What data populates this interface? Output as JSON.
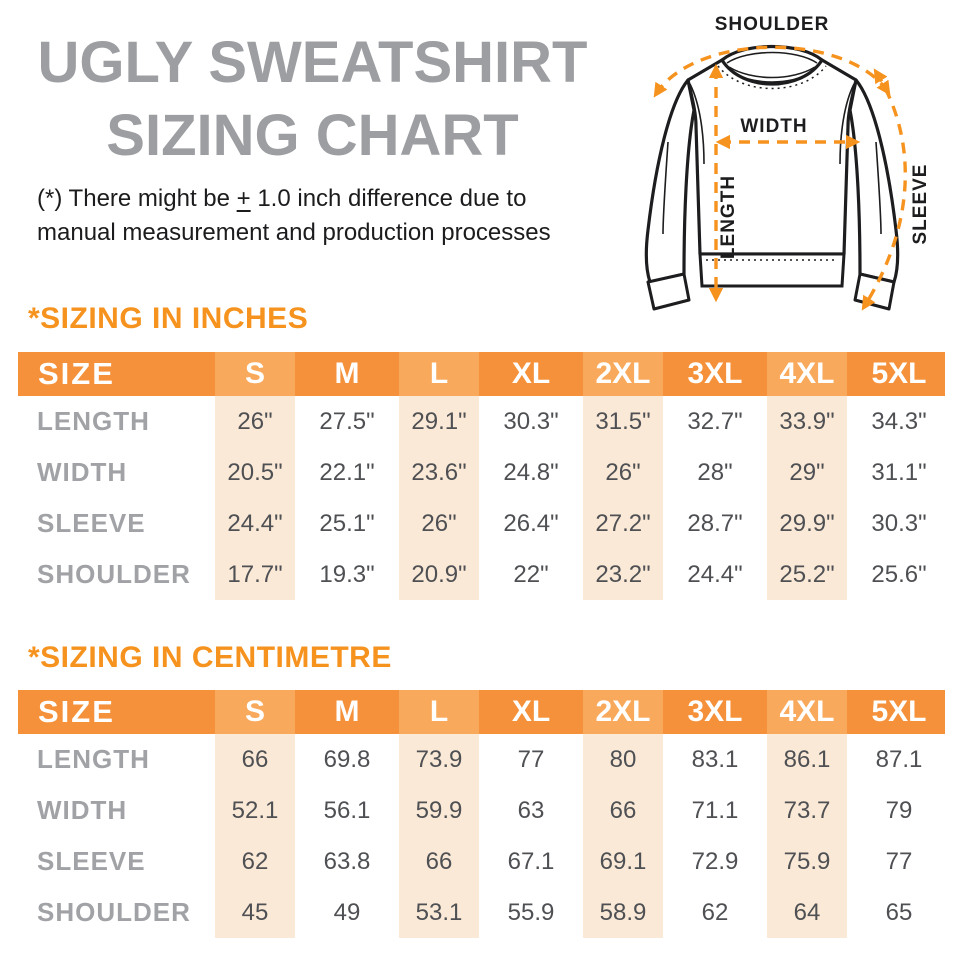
{
  "page": {
    "title_line1": "UGLY SWEATSHIRT",
    "title_line2": "SIZING CHART",
    "note_prefix": "(*) There might be ",
    "note_pm": "+",
    "note_suffix": " 1.0 inch difference due to",
    "note_line2": "manual measurement and production processes"
  },
  "diagram": {
    "labels": {
      "shoulder": "SHOULDER",
      "width": "WIDTH",
      "length": "LENGTH",
      "sleeve": "SLEEVE"
    }
  },
  "colors": {
    "accent_orange": "#F6921E",
    "header_orange": "#F5913A",
    "header_orange_light": "#F8A95C",
    "stripe_peach": "#FBE9D7",
    "title_gray": "#9C9EA1",
    "label_gray": "#A0A2A5",
    "value_gray": "#4E5053",
    "ink": "#1C1C1E"
  },
  "tables": [
    {
      "id": "inches",
      "section_title": "*SIZING IN INCHES",
      "header": [
        "SIZE",
        "S",
        "M",
        "L",
        "XL",
        "2XL",
        "3XL",
        "4XL",
        "5XL"
      ],
      "rows": [
        {
          "label": "LENGTH",
          "values": [
            "26\"",
            "27.5\"",
            "29.1\"",
            "30.3\"",
            "31.5\"",
            "32.7\"",
            "33.9\"",
            "34.3\""
          ]
        },
        {
          "label": "WIDTH",
          "values": [
            "20.5\"",
            "22.1\"",
            "23.6\"",
            "24.8\"",
            "26\"",
            "28\"",
            "29\"",
            "31.1\""
          ]
        },
        {
          "label": "SLEEVE",
          "values": [
            "24.4\"",
            "25.1\"",
            "26\"",
            "26.4\"",
            "27.2\"",
            "28.7\"",
            "29.9\"",
            "30.3\""
          ]
        },
        {
          "label": "SHOULDER",
          "values": [
            "17.7\"",
            "19.3\"",
            "20.9\"",
            "22\"",
            "23.2\"",
            "24.4\"",
            "25.2\"",
            "25.6\""
          ]
        }
      ]
    },
    {
      "id": "cm",
      "section_title": "*SIZING IN CENTIMETRE",
      "header": [
        "SIZE",
        "S",
        "M",
        "L",
        "XL",
        "2XL",
        "3XL",
        "4XL",
        "5XL"
      ],
      "rows": [
        {
          "label": "LENGTH",
          "values": [
            "66",
            "69.8",
            "73.9",
            "77",
            "80",
            "83.1",
            "86.1",
            "87.1"
          ]
        },
        {
          "label": "WIDTH",
          "values": [
            "52.1",
            "56.1",
            "59.9",
            "63",
            "66",
            "71.1",
            "73.7",
            "79"
          ]
        },
        {
          "label": "SLEEVE",
          "values": [
            "62",
            "63.8",
            "66",
            "67.1",
            "69.1",
            "72.9",
            "75.9",
            "77"
          ]
        },
        {
          "label": "SHOULDER",
          "values": [
            "45",
            "49",
            "53.1",
            "55.9",
            "58.9",
            "62",
            "64",
            "65"
          ]
        }
      ]
    }
  ]
}
